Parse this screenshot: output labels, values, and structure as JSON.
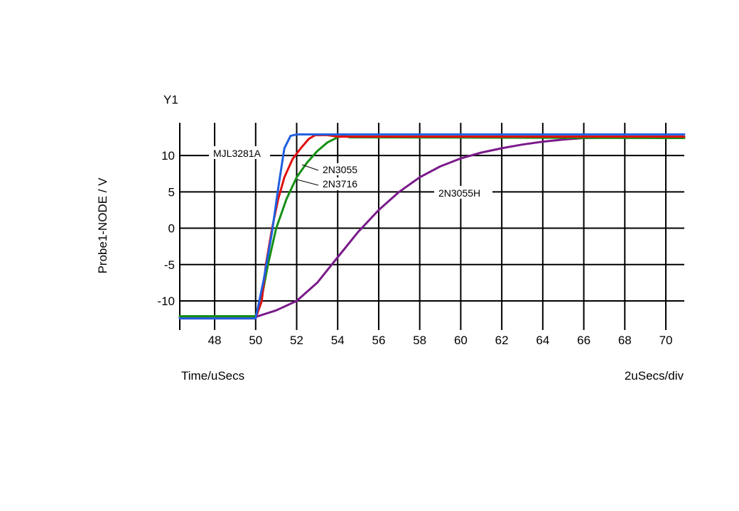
{
  "chart_data": {
    "type": "line",
    "y_group_label": "Y1",
    "ylabel": "Probe1-NODE / V",
    "xlabel": "Time/uSecs",
    "x_scale_note": "2uSecs/div",
    "xlim": [
      46.3,
      70.9
    ],
    "ylim": [
      -14,
      14.5
    ],
    "x_ticks": [
      48,
      50,
      52,
      54,
      56,
      58,
      60,
      62,
      64,
      66,
      68,
      70
    ],
    "y_ticks": [
      10,
      5,
      0,
      -5,
      -10
    ],
    "grid": true,
    "colors": {
      "MJL3281A": "#1f5fe0",
      "2N3055": "#e01010",
      "2N3716": "#159015",
      "2N3055H": "#7a1a8a"
    },
    "series": [
      {
        "name": "MJL3281A",
        "points": [
          [
            46.3,
            -12.4
          ],
          [
            50.0,
            -12.4
          ],
          [
            50.4,
            -7.0
          ],
          [
            50.8,
            -0.5
          ],
          [
            51.1,
            5.5
          ],
          [
            51.4,
            11.0
          ],
          [
            51.7,
            12.7
          ],
          [
            52.0,
            12.9
          ],
          [
            54.0,
            12.9
          ],
          [
            70.9,
            12.9
          ]
        ]
      },
      {
        "name": "2N3055",
        "points": [
          [
            46.3,
            -12.4
          ],
          [
            50.0,
            -12.4
          ],
          [
            50.3,
            -10.0
          ],
          [
            50.5,
            -5.0
          ],
          [
            50.8,
            0.0
          ],
          [
            51.1,
            4.0
          ],
          [
            51.4,
            7.0
          ],
          [
            51.8,
            9.5
          ],
          [
            52.2,
            11.0
          ],
          [
            52.6,
            12.3
          ],
          [
            52.9,
            12.8
          ],
          [
            53.5,
            12.8
          ],
          [
            54.0,
            12.6
          ],
          [
            70.9,
            12.6
          ]
        ]
      },
      {
        "name": "2N3716",
        "points": [
          [
            46.3,
            -12.1
          ],
          [
            50.0,
            -12.1
          ],
          [
            50.3,
            -9.5
          ],
          [
            50.6,
            -5.0
          ],
          [
            51.0,
            0.0
          ],
          [
            51.5,
            4.0
          ],
          [
            52.0,
            7.0
          ],
          [
            52.5,
            9.0
          ],
          [
            53.0,
            10.6
          ],
          [
            53.5,
            11.8
          ],
          [
            54.0,
            12.5
          ],
          [
            54.3,
            12.7
          ],
          [
            54.6,
            12.5
          ],
          [
            70.9,
            12.4
          ]
        ]
      },
      {
        "name": "2N3055H",
        "points": [
          [
            46.3,
            -12.2
          ],
          [
            50.0,
            -12.2
          ],
          [
            51.0,
            -11.3
          ],
          [
            52.0,
            -10.0
          ],
          [
            53.0,
            -7.5
          ],
          [
            54.0,
            -4.0
          ],
          [
            55.0,
            -0.5
          ],
          [
            56.0,
            2.5
          ],
          [
            57.0,
            5.0
          ],
          [
            58.0,
            7.0
          ],
          [
            59.0,
            8.5
          ],
          [
            60.0,
            9.6
          ],
          [
            61.0,
            10.4
          ],
          [
            62.0,
            11.0
          ],
          [
            63.0,
            11.5
          ],
          [
            64.0,
            11.9
          ],
          [
            65.0,
            12.2
          ],
          [
            66.0,
            12.4
          ],
          [
            68.0,
            12.5
          ],
          [
            70.9,
            12.5
          ]
        ]
      }
    ],
    "annotations": [
      {
        "text": "MJL3281A",
        "series": "MJL3281A"
      },
      {
        "text": "2N3055",
        "series": "2N3055"
      },
      {
        "text": "2N3716",
        "series": "2N3716"
      },
      {
        "text": "2N3055H",
        "series": "2N3055H"
      }
    ]
  }
}
